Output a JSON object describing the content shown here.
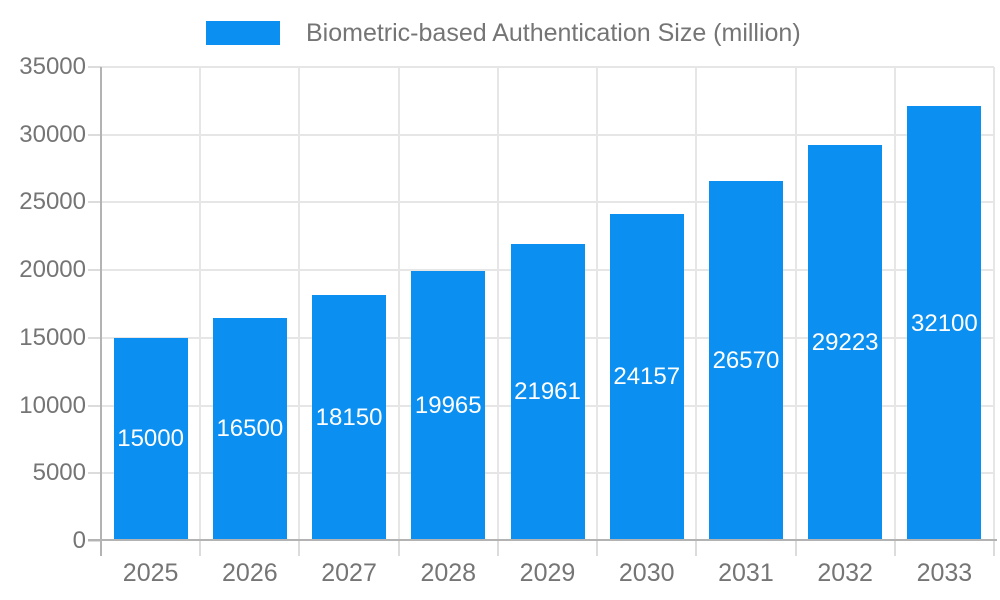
{
  "chart_data": {
    "type": "bar",
    "title": "Biometric-based Authentication Size (million)",
    "legend": {
      "position": "top",
      "label": "Biometric-based Authentication Size (million)"
    },
    "categories": [
      "2025",
      "2026",
      "2027",
      "2028",
      "2029",
      "2030",
      "2031",
      "2032",
      "2033"
    ],
    "values": [
      15000,
      16500,
      18150,
      19965,
      21961,
      24157,
      26570,
      29223,
      32100
    ],
    "series": [
      {
        "name": "Biometric-based Authentication Size (million)",
        "values": [
          15000,
          16500,
          18150,
          19965,
          21961,
          24157,
          26570,
          29223,
          32100
        ]
      }
    ],
    "xlabel": "",
    "ylabel": "",
    "ylim": [
      0,
      35000
    ],
    "yticks": [
      0,
      5000,
      10000,
      15000,
      20000,
      25000,
      30000,
      35000
    ],
    "grid": "on",
    "value_label_position": "inside-center",
    "colors": {
      "bar": "#0b90f1",
      "value_label": "#ffffff",
      "axis_text": "#757575",
      "gridline": "#e6e6e6",
      "axis_line": "#b3b3b3",
      "tick": "#dcdcdc",
      "background": "#ffffff"
    }
  }
}
